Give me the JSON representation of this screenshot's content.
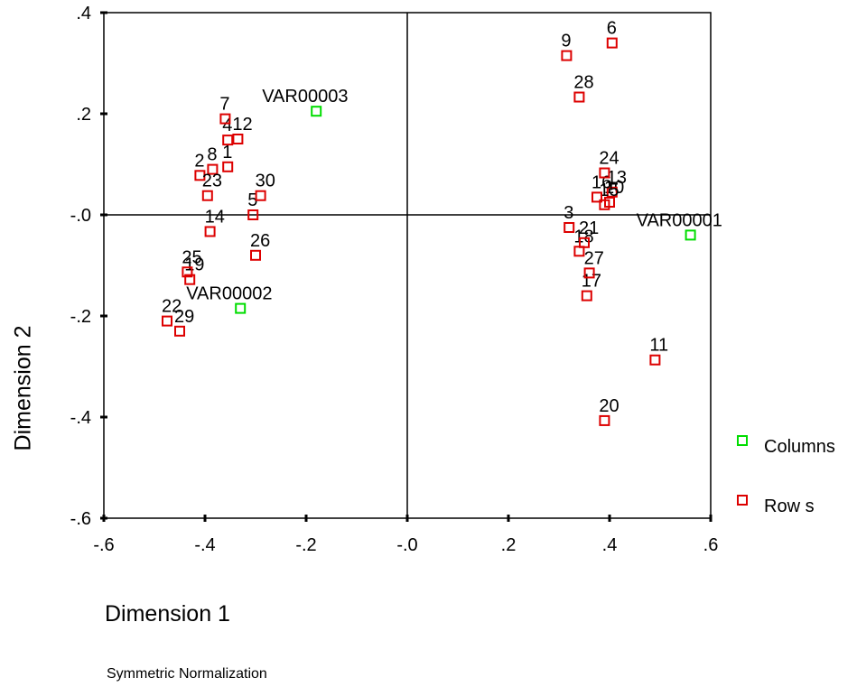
{
  "chart_data": {
    "type": "scatter",
    "xlabel": "Dimension 1",
    "ylabel": "Dimension 2",
    "footnote": "Symmetric Normalization",
    "xlim": [
      -0.6,
      0.6
    ],
    "ylim": [
      -0.6,
      0.4
    ],
    "x_ticks": [
      -0.6,
      -0.4,
      -0.2,
      0.0,
      0.2,
      0.4,
      0.6
    ],
    "x_tick_labels": [
      "-.6",
      "-.4",
      "-.2",
      "-.0",
      ".2",
      ".4",
      ".6"
    ],
    "y_ticks": [
      0.4,
      0.2,
      0.0,
      -0.2,
      -0.4,
      -0.6
    ],
    "y_tick_labels": [
      ".4",
      ".2",
      "-.0",
      "-.2",
      "-.4",
      "-.6"
    ],
    "reference_lines": {
      "x": 0.0,
      "y": 0.0
    },
    "grid": false,
    "legend_placement": "right",
    "series": [
      {
        "name": "Columns",
        "color": "#00dd00",
        "marker": "open-square",
        "points": [
          {
            "label": "VAR00001",
            "x": 0.56,
            "y": -0.04
          },
          {
            "label": "VAR00002",
            "x": -0.33,
            "y": -0.185
          },
          {
            "label": "VAR00003",
            "x": -0.18,
            "y": 0.205
          }
        ]
      },
      {
        "name": "Row s",
        "color": "#dd0000",
        "marker": "open-square",
        "points": [
          {
            "label": "1",
            "x": -0.355,
            "y": 0.095
          },
          {
            "label": "2",
            "x": -0.41,
            "y": 0.078
          },
          {
            "label": "3",
            "x": 0.32,
            "y": -0.025
          },
          {
            "label": "4",
            "x": -0.355,
            "y": 0.148
          },
          {
            "label": "5",
            "x": -0.305,
            "y": 0.0
          },
          {
            "label": "6",
            "x": 0.405,
            "y": 0.34
          },
          {
            "label": "7",
            "x": -0.36,
            "y": 0.19
          },
          {
            "label": "8",
            "x": -0.385,
            "y": 0.09
          },
          {
            "label": "9",
            "x": 0.315,
            "y": 0.315
          },
          {
            "label": "10",
            "x": 0.4,
            "y": 0.025
          },
          {
            "label": "11",
            "x": 0.49,
            "y": -0.287
          },
          {
            "label": "12",
            "x": -0.335,
            "y": 0.15
          },
          {
            "label": "13",
            "x": 0.405,
            "y": 0.045
          },
          {
            "label": "14",
            "x": -0.39,
            "y": -0.033
          },
          {
            "label": "15",
            "x": 0.39,
            "y": 0.02
          },
          {
            "label": "16",
            "x": 0.375,
            "y": 0.035
          },
          {
            "label": "17",
            "x": 0.355,
            "y": -0.16
          },
          {
            "label": "18",
            "x": 0.34,
            "y": -0.072
          },
          {
            "label": "19",
            "x": -0.43,
            "y": -0.128
          },
          {
            "label": "20",
            "x": 0.39,
            "y": -0.407
          },
          {
            "label": "21",
            "x": 0.35,
            "y": -0.055
          },
          {
            "label": "22",
            "x": -0.475,
            "y": -0.21
          },
          {
            "label": "23",
            "x": -0.395,
            "y": 0.038
          },
          {
            "label": "24",
            "x": 0.39,
            "y": 0.083
          },
          {
            "label": "25",
            "x": -0.435,
            "y": -0.113
          },
          {
            "label": "26",
            "x": -0.3,
            "y": -0.08
          },
          {
            "label": "27",
            "x": 0.36,
            "y": -0.115
          },
          {
            "label": "28",
            "x": 0.34,
            "y": 0.233
          },
          {
            "label": "29",
            "x": -0.45,
            "y": -0.23
          },
          {
            "label": "30",
            "x": -0.29,
            "y": 0.038
          }
        ]
      }
    ]
  },
  "legend": {
    "columns_label": "Columns",
    "rows_label": "Row s",
    "columns_color": "#00dd00",
    "rows_color": "#dd0000"
  }
}
